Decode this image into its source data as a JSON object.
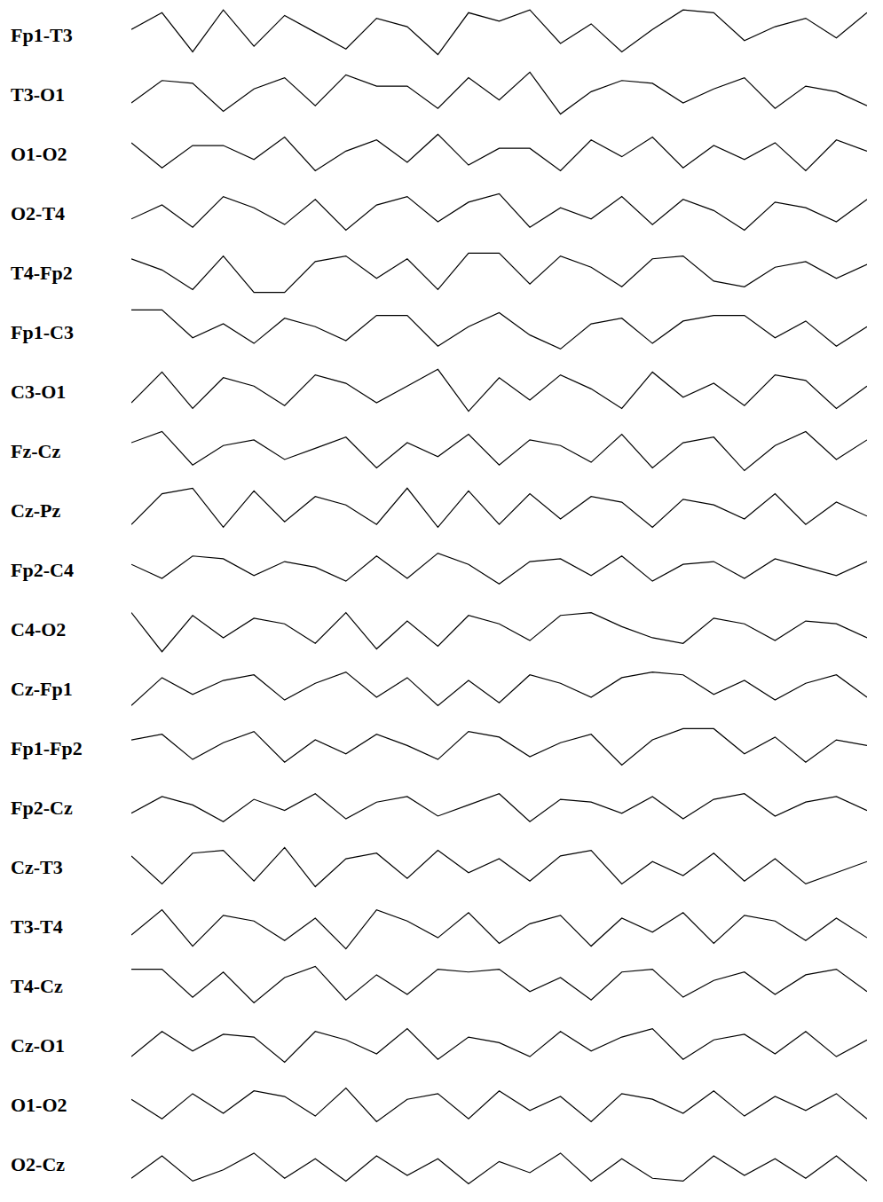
{
  "chart_data": [
    {
      "type": "line",
      "title": "Fp1-T3",
      "tick_labels": false,
      "grid": false,
      "color": "#000000",
      "marker": "none",
      "line_style": "solid",
      "xlim": [
        0,
        24
      ],
      "ylim": [
        -1,
        1
      ],
      "x": [
        0,
        1,
        2,
        3,
        4,
        5,
        6,
        7,
        8,
        9,
        10,
        11,
        12,
        13,
        14,
        15,
        16,
        17,
        18,
        19,
        20,
        21,
        22,
        23,
        24
      ],
      "values": [
        0.2,
        0.8,
        -0.6,
        0.9,
        -0.4,
        0.7,
        0.1,
        -0.5,
        0.6,
        0.3,
        -0.7,
        0.8,
        0.5,
        0.9,
        -0.3,
        0.4,
        -0.6,
        0.2,
        0.9,
        0.8,
        -0.2,
        0.3,
        0.6,
        -0.1,
        0.8
      ]
    },
    {
      "type": "line",
      "title": "T3-O1",
      "tick_labels": false,
      "grid": false,
      "color": "#000000",
      "marker": "none",
      "line_style": "solid",
      "xlim": [
        0,
        24
      ],
      "ylim": [
        -1,
        1
      ],
      "x": [
        0,
        1,
        2,
        3,
        4,
        5,
        6,
        7,
        8,
        9,
        10,
        11,
        12,
        13,
        14,
        15,
        16,
        17,
        18,
        19,
        20,
        21,
        22,
        23,
        24
      ],
      "values": [
        -0.3,
        0.5,
        0.4,
        -0.6,
        0.2,
        0.6,
        -0.4,
        0.7,
        0.3,
        0.3,
        -0.5,
        0.6,
        -0.2,
        0.8,
        -0.7,
        0.1,
        0.5,
        0.4,
        -0.3,
        0.2,
        0.6,
        -0.5,
        0.3,
        0.1,
        -0.4
      ]
    },
    {
      "type": "line",
      "title": "O1-O2",
      "tick_labels": false,
      "grid": false,
      "color": "#000000",
      "marker": "none",
      "line_style": "solid",
      "xlim": [
        0,
        24
      ],
      "ylim": [
        -1,
        1
      ],
      "x": [
        0,
        1,
        2,
        3,
        4,
        5,
        6,
        7,
        8,
        9,
        10,
        11,
        12,
        13,
        14,
        15,
        16,
        17,
        18,
        19,
        20,
        21,
        22,
        23,
        24
      ],
      "values": [
        0.4,
        -0.5,
        0.3,
        0.3,
        -0.2,
        0.6,
        -0.6,
        0.1,
        0.5,
        -0.3,
        0.7,
        -0.4,
        0.2,
        0.2,
        -0.6,
        0.5,
        -0.1,
        0.6,
        -0.5,
        0.3,
        -0.2,
        0.4,
        -0.6,
        0.5,
        0.1
      ]
    },
    {
      "type": "line",
      "title": "O2-T4",
      "tick_labels": false,
      "grid": false,
      "color": "#000000",
      "marker": "none",
      "line_style": "solid",
      "xlim": [
        0,
        24
      ],
      "ylim": [
        -1,
        1
      ],
      "x": [
        0,
        1,
        2,
        3,
        4,
        5,
        6,
        7,
        8,
        9,
        10,
        11,
        12,
        13,
        14,
        15,
        16,
        17,
        18,
        19,
        20,
        21,
        22,
        23,
        24
      ],
      "values": [
        -0.2,
        0.3,
        -0.5,
        0.6,
        0.2,
        -0.4,
        0.5,
        -0.6,
        0.3,
        0.6,
        -0.3,
        0.4,
        0.7,
        -0.5,
        0.2,
        -0.2,
        0.6,
        -0.4,
        0.5,
        0.1,
        -0.6,
        0.4,
        0.2,
        -0.3,
        0.5
      ]
    },
    {
      "type": "line",
      "title": "T4-Fp2",
      "tick_labels": false,
      "grid": false,
      "color": "#000000",
      "marker": "none",
      "line_style": "solid",
      "xlim": [
        0,
        24
      ],
      "ylim": [
        -1,
        1
      ],
      "x": [
        0,
        1,
        2,
        3,
        4,
        5,
        6,
        7,
        8,
        9,
        10,
        11,
        12,
        13,
        14,
        15,
        16,
        17,
        18,
        19,
        20,
        21,
        22,
        23,
        24
      ],
      "values": [
        0.5,
        0.1,
        -0.6,
        0.6,
        -0.7,
        -0.7,
        0.4,
        0.6,
        -0.2,
        0.5,
        -0.6,
        0.7,
        0.7,
        -0.4,
        0.6,
        0.2,
        -0.5,
        0.5,
        0.6,
        -0.3,
        -0.5,
        0.2,
        0.4,
        -0.2,
        0.3
      ]
    },
    {
      "type": "line",
      "title": "Fp1-C3",
      "tick_labels": false,
      "grid": false,
      "color": "#000000",
      "marker": "none",
      "line_style": "solid",
      "xlim": [
        0,
        24
      ],
      "ylim": [
        -1,
        1
      ],
      "x": [
        0,
        1,
        2,
        3,
        4,
        5,
        6,
        7,
        8,
        9,
        10,
        11,
        12,
        13,
        14,
        15,
        16,
        17,
        18,
        19,
        20,
        21,
        22,
        23,
        24
      ],
      "values": [
        0.8,
        0.8,
        -0.2,
        0.3,
        -0.4,
        0.5,
        0.2,
        -0.3,
        0.6,
        0.6,
        -0.5,
        0.2,
        0.7,
        -0.1,
        -0.6,
        0.3,
        0.5,
        -0.4,
        0.4,
        0.6,
        0.6,
        -0.2,
        0.4,
        -0.5,
        0.2
      ]
    },
    {
      "type": "line",
      "title": "C3-O1",
      "tick_labels": false,
      "grid": false,
      "color": "#000000",
      "marker": "none",
      "line_style": "solid",
      "xlim": [
        0,
        24
      ],
      "ylim": [
        -1,
        1
      ],
      "x": [
        0,
        1,
        2,
        3,
        4,
        5,
        6,
        7,
        8,
        9,
        10,
        11,
        12,
        13,
        14,
        15,
        16,
        17,
        18,
        19,
        20,
        21,
        22,
        23,
        24
      ],
      "values": [
        -0.4,
        0.7,
        -0.6,
        0.5,
        0.2,
        -0.5,
        0.6,
        0.3,
        -0.4,
        0.2,
        0.8,
        -0.7,
        0.5,
        -0.3,
        0.6,
        0.1,
        -0.6,
        0.7,
        -0.2,
        0.3,
        -0.5,
        0.6,
        0.4,
        -0.6,
        0.2
      ]
    },
    {
      "type": "line",
      "title": "Fz-Cz",
      "tick_labels": false,
      "grid": false,
      "color": "#000000",
      "marker": "none",
      "line_style": "solid",
      "xlim": [
        0,
        24
      ],
      "ylim": [
        -1,
        1
      ],
      "x": [
        0,
        1,
        2,
        3,
        4,
        5,
        6,
        7,
        8,
        9,
        10,
        11,
        12,
        13,
        14,
        15,
        16,
        17,
        18,
        19,
        20,
        21,
        22,
        23,
        24
      ],
      "values": [
        0.3,
        0.7,
        -0.5,
        0.2,
        0.4,
        -0.3,
        0.1,
        0.5,
        -0.6,
        0.3,
        -0.2,
        0.6,
        -0.5,
        0.4,
        0.2,
        -0.4,
        0.6,
        -0.6,
        0.3,
        0.5,
        -0.7,
        0.2,
        0.7,
        -0.3,
        0.4
      ]
    },
    {
      "type": "line",
      "title": "Cz-Pz",
      "tick_labels": false,
      "grid": false,
      "color": "#000000",
      "marker": "none",
      "line_style": "solid",
      "xlim": [
        0,
        24
      ],
      "ylim": [
        -1,
        1
      ],
      "x": [
        0,
        1,
        2,
        3,
        4,
        5,
        6,
        7,
        8,
        9,
        10,
        11,
        12,
        13,
        14,
        15,
        16,
        17,
        18,
        19,
        20,
        21,
        22,
        23,
        24
      ],
      "values": [
        -0.5,
        0.6,
        0.8,
        -0.6,
        0.7,
        -0.4,
        0.5,
        0.2,
        -0.5,
        0.8,
        -0.6,
        0.7,
        -0.5,
        0.6,
        -0.3,
        0.5,
        0.3,
        -0.6,
        0.4,
        0.2,
        -0.3,
        0.6,
        -0.5,
        0.3,
        -0.2
      ]
    },
    {
      "type": "line",
      "title": "Fp2-C4",
      "tick_labels": false,
      "grid": false,
      "color": "#000000",
      "marker": "none",
      "line_style": "solid",
      "xlim": [
        0,
        24
      ],
      "ylim": [
        -1,
        1
      ],
      "x": [
        0,
        1,
        2,
        3,
        4,
        5,
        6,
        7,
        8,
        9,
        10,
        11,
        12,
        13,
        14,
        15,
        16,
        17,
        18,
        19,
        20,
        21,
        22,
        23,
        24
      ],
      "values": [
        0.2,
        -0.3,
        0.5,
        0.4,
        -0.2,
        0.3,
        0.1,
        -0.4,
        0.5,
        -0.3,
        0.6,
        0.2,
        -0.5,
        0.3,
        0.4,
        -0.2,
        0.5,
        -0.4,
        0.2,
        0.3,
        -0.3,
        0.4,
        0.1,
        -0.2,
        0.3
      ]
    },
    {
      "type": "line",
      "title": "C4-O2",
      "tick_labels": false,
      "grid": false,
      "color": "#000000",
      "marker": "none",
      "line_style": "solid",
      "xlim": [
        0,
        24
      ],
      "ylim": [
        -1,
        1
      ],
      "x": [
        0,
        1,
        2,
        3,
        4,
        5,
        6,
        7,
        8,
        9,
        10,
        11,
        12,
        13,
        14,
        15,
        16,
        17,
        18,
        19,
        20,
        21,
        22,
        23,
        24
      ],
      "values": [
        0.6,
        -0.8,
        0.5,
        -0.3,
        0.4,
        0.2,
        -0.5,
        0.6,
        -0.7,
        0.3,
        -0.6,
        0.5,
        0.2,
        -0.4,
        0.5,
        0.6,
        0.1,
        -0.3,
        -0.5,
        0.4,
        0.2,
        -0.4,
        0.3,
        0.2,
        -0.3
      ]
    },
    {
      "type": "line",
      "title": "Cz-Fp1",
      "tick_labels": false,
      "grid": false,
      "color": "#000000",
      "marker": "none",
      "line_style": "solid",
      "xlim": [
        0,
        24
      ],
      "ylim": [
        -1,
        1
      ],
      "x": [
        0,
        1,
        2,
        3,
        4,
        5,
        6,
        7,
        8,
        9,
        10,
        11,
        12,
        13,
        14,
        15,
        16,
        17,
        18,
        19,
        20,
        21,
        22,
        23,
        24
      ],
      "values": [
        -0.6,
        0.4,
        -0.2,
        0.3,
        0.5,
        -0.4,
        0.2,
        0.6,
        -0.3,
        0.4,
        -0.6,
        0.3,
        -0.5,
        0.5,
        0.2,
        -0.3,
        0.4,
        0.6,
        0.5,
        -0.2,
        0.3,
        -0.4,
        0.2,
        0.5,
        -0.3
      ]
    },
    {
      "type": "line",
      "title": "Fp1-Fp2",
      "tick_labels": false,
      "grid": false,
      "color": "#000000",
      "marker": "none",
      "line_style": "solid",
      "xlim": [
        0,
        24
      ],
      "ylim": [
        -1,
        1
      ],
      "x": [
        0,
        1,
        2,
        3,
        4,
        5,
        6,
        7,
        8,
        9,
        10,
        11,
        12,
        13,
        14,
        15,
        16,
        17,
        18,
        19,
        20,
        21,
        22,
        23,
        24
      ],
      "values": [
        0.3,
        0.5,
        -0.4,
        0.2,
        0.6,
        -0.5,
        0.3,
        -0.2,
        0.5,
        0.1,
        -0.4,
        0.6,
        0.4,
        -0.3,
        0.2,
        0.5,
        -0.6,
        0.3,
        0.7,
        0.7,
        -0.2,
        0.4,
        -0.5,
        0.3,
        0.1
      ]
    },
    {
      "type": "line",
      "title": "Fp2-Cz",
      "tick_labels": false,
      "grid": false,
      "color": "#000000",
      "marker": "none",
      "line_style": "solid",
      "xlim": [
        0,
        24
      ],
      "ylim": [
        -1,
        1
      ],
      "x": [
        0,
        1,
        2,
        3,
        4,
        5,
        6,
        7,
        8,
        9,
        10,
        11,
        12,
        13,
        14,
        15,
        16,
        17,
        18,
        19,
        20,
        21,
        22,
        23,
        24
      ],
      "values": [
        -0.2,
        0.4,
        0.1,
        -0.5,
        0.3,
        -0.1,
        0.5,
        -0.4,
        0.2,
        0.4,
        -0.3,
        0.1,
        0.5,
        -0.5,
        0.3,
        0.2,
        -0.2,
        0.4,
        -0.4,
        0.3,
        0.5,
        -0.3,
        0.2,
        0.4,
        -0.1
      ]
    },
    {
      "type": "line",
      "title": "Cz-T3",
      "tick_labels": false,
      "grid": false,
      "color": "#000000",
      "marker": "none",
      "line_style": "solid",
      "xlim": [
        0,
        24
      ],
      "ylim": [
        -1,
        1
      ],
      "x": [
        0,
        1,
        2,
        3,
        4,
        5,
        6,
        7,
        8,
        9,
        10,
        11,
        12,
        13,
        14,
        15,
        16,
        17,
        18,
        19,
        20,
        21,
        22,
        23,
        24
      ],
      "values": [
        0.4,
        -0.6,
        0.5,
        0.6,
        -0.5,
        0.7,
        -0.7,
        0.3,
        0.5,
        -0.4,
        0.6,
        -0.2,
        0.3,
        -0.5,
        0.4,
        0.6,
        -0.6,
        0.2,
        -0.3,
        0.5,
        -0.5,
        0.3,
        -0.6,
        -0.2,
        0.2
      ]
    },
    {
      "type": "line",
      "title": "T3-T4",
      "tick_labels": false,
      "grid": false,
      "color": "#000000",
      "marker": "none",
      "line_style": "solid",
      "xlim": [
        0,
        24
      ],
      "ylim": [
        -1,
        1
      ],
      "x": [
        0,
        1,
        2,
        3,
        4,
        5,
        6,
        7,
        8,
        9,
        10,
        11,
        12,
        13,
        14,
        15,
        16,
        17,
        18,
        19,
        20,
        21,
        22,
        23,
        24
      ],
      "values": [
        -0.3,
        0.6,
        -0.7,
        0.4,
        0.2,
        -0.5,
        0.3,
        -0.8,
        0.6,
        0.2,
        -0.4,
        0.5,
        -0.6,
        0.1,
        0.4,
        -0.7,
        0.3,
        -0.2,
        0.5,
        -0.6,
        0.4,
        0.2,
        -0.5,
        0.3,
        -0.4
      ]
    },
    {
      "type": "line",
      "title": "T4-Cz",
      "tick_labels": false,
      "grid": false,
      "color": "#000000",
      "marker": "none",
      "line_style": "solid",
      "xlim": [
        0,
        24
      ],
      "ylim": [
        -1,
        1
      ],
      "x": [
        0,
        1,
        2,
        3,
        4,
        5,
        6,
        7,
        8,
        9,
        10,
        11,
        12,
        13,
        14,
        15,
        16,
        17,
        18,
        19,
        20,
        21,
        22,
        23,
        24
      ],
      "values": [
        0.6,
        0.6,
        -0.4,
        0.5,
        -0.6,
        0.3,
        0.7,
        -0.5,
        0.4,
        -0.3,
        0.6,
        0.5,
        0.6,
        -0.2,
        0.3,
        -0.5,
        0.5,
        0.6,
        -0.4,
        0.2,
        0.5,
        -0.3,
        0.4,
        0.6,
        -0.2
      ]
    },
    {
      "type": "line",
      "title": "Cz-O1",
      "tick_labels": false,
      "grid": false,
      "color": "#000000",
      "marker": "none",
      "line_style": "solid",
      "xlim": [
        0,
        24
      ],
      "ylim": [
        -1,
        1
      ],
      "x": [
        0,
        1,
        2,
        3,
        4,
        5,
        6,
        7,
        8,
        9,
        10,
        11,
        12,
        13,
        14,
        15,
        16,
        17,
        18,
        19,
        20,
        21,
        22,
        23,
        24
      ],
      "values": [
        -0.4,
        0.5,
        -0.2,
        0.4,
        0.3,
        -0.6,
        0.5,
        0.2,
        -0.3,
        0.6,
        -0.5,
        0.3,
        0.1,
        -0.4,
        0.5,
        -0.2,
        0.3,
        0.6,
        -0.5,
        0.2,
        0.4,
        -0.3,
        0.5,
        -0.4,
        0.2
      ]
    },
    {
      "type": "line",
      "title": "O1-O2",
      "tick_labels": false,
      "grid": false,
      "color": "#000000",
      "marker": "none",
      "line_style": "solid",
      "xlim": [
        0,
        24
      ],
      "ylim": [
        -1,
        1
      ],
      "x": [
        0,
        1,
        2,
        3,
        4,
        5,
        6,
        7,
        8,
        9,
        10,
        11,
        12,
        13,
        14,
        15,
        16,
        17,
        18,
        19,
        20,
        21,
        22,
        23,
        24
      ],
      "values": [
        0.2,
        -0.5,
        0.4,
        -0.3,
        0.5,
        0.3,
        -0.4,
        0.6,
        -0.6,
        0.2,
        0.4,
        -0.5,
        0.5,
        -0.2,
        0.3,
        -0.6,
        0.4,
        0.2,
        -0.3,
        0.5,
        -0.4,
        0.3,
        -0.2,
        0.4,
        -0.5
      ]
    },
    {
      "type": "line",
      "title": "O2-Cz",
      "tick_labels": false,
      "grid": false,
      "color": "#000000",
      "marker": "none",
      "line_style": "solid",
      "xlim": [
        0,
        24
      ],
      "ylim": [
        -1,
        1
      ],
      "x": [
        0,
        1,
        2,
        3,
        4,
        5,
        6,
        7,
        8,
        9,
        10,
        11,
        12,
        13,
        14,
        15,
        16,
        17,
        18,
        19,
        20,
        21,
        22,
        23,
        24
      ],
      "values": [
        -0.5,
        0.3,
        -0.6,
        -0.2,
        0.4,
        -0.5,
        0.2,
        -0.6,
        0.3,
        -0.4,
        0.2,
        -0.7,
        0.1,
        -0.3,
        0.4,
        -0.6,
        0.2,
        -0.5,
        -0.6,
        0.3,
        -0.4,
        0.2,
        -0.5,
        0.3,
        -0.6
      ]
    }
  ]
}
